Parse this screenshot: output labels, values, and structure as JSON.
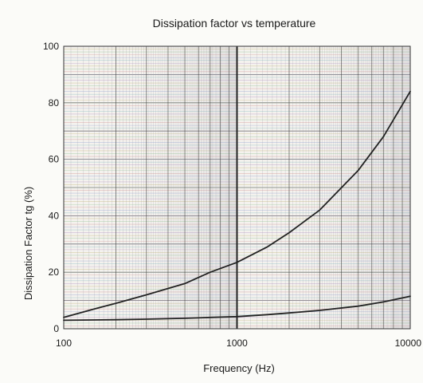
{
  "chart_data": {
    "type": "line",
    "title": "Dissipation factor vs temperature",
    "xlabel": "Frequency (Hz)",
    "ylabel": "Dissipation Factor tg (%)",
    "x_scale": "log",
    "xlim": [
      100,
      10000
    ],
    "ylim": [
      0,
      100
    ],
    "x_ticks": [
      100,
      1000,
      10000
    ],
    "x_tick_labels": [
      "100",
      "1000",
      "10000"
    ],
    "y_ticks": [
      0,
      20,
      40,
      60,
      80,
      100
    ],
    "y_tick_labels": [
      "0",
      "20",
      "40",
      "60",
      "80",
      "100"
    ],
    "grid": true,
    "series": [
      {
        "x": [
          100,
          150,
          200,
          300,
          500,
          700,
          1000,
          1500,
          2000,
          3000,
          5000,
          7000,
          10000
        ],
        "values": [
          4,
          7,
          9,
          12,
          16,
          20,
          23.5,
          29,
          34,
          42,
          56,
          68,
          84
        ],
        "color": "#222222"
      },
      {
        "x": [
          100,
          200,
          300,
          500,
          700,
          1000,
          1500,
          2000,
          3000,
          5000,
          7000,
          10000
        ],
        "values": [
          3,
          3.2,
          3.4,
          3.7,
          4,
          4.3,
          5,
          5.6,
          6.5,
          8,
          9.5,
          11.5
        ],
        "color": "#222222"
      }
    ]
  }
}
